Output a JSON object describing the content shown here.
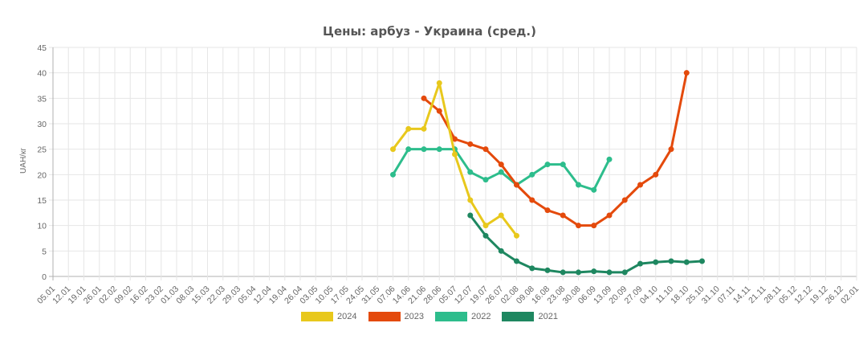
{
  "chart_data": {
    "type": "line",
    "title": "Цены: арбуз - Украина (сред.)",
    "xlabel": "",
    "ylabel": "UAH/кг",
    "ylim": [
      0,
      45
    ],
    "yticks": [
      0,
      5,
      10,
      15,
      20,
      25,
      30,
      35,
      40,
      45
    ],
    "grid": true,
    "legend_position": "bottom",
    "categories": [
      "05.01",
      "12.01",
      "19.01",
      "26.01",
      "02.02",
      "09.02",
      "16.02",
      "23.02",
      "01.03",
      "08.03",
      "15.03",
      "22.03",
      "29.03",
      "05.04",
      "12.04",
      "19.04",
      "26.04",
      "03.05",
      "10.05",
      "17.05",
      "24.05",
      "31.05",
      "07.06",
      "14.06",
      "21.06",
      "28.06",
      "05.07",
      "12.07",
      "19.07",
      "26.07",
      "02.08",
      "09.08",
      "16.08",
      "23.08",
      "30.08",
      "06.09",
      "13.09",
      "20.09",
      "27.09",
      "04.10",
      "11.10",
      "18.10",
      "25.10",
      "31.10",
      "07.11",
      "14.11",
      "21.11",
      "28.11",
      "05.12",
      "12.12",
      "19.12",
      "26.12",
      "02.01"
    ],
    "series": [
      {
        "name": "2024",
        "color": "#e8c81c",
        "points": [
          [
            "07.06",
            25
          ],
          [
            "14.06",
            29
          ],
          [
            "21.06",
            29
          ],
          [
            "28.06",
            38
          ],
          [
            "05.07",
            24
          ],
          [
            "12.07",
            15
          ],
          [
            "19.07",
            10
          ],
          [
            "26.07",
            12
          ],
          [
            "02.08",
            8
          ]
        ]
      },
      {
        "name": "2023",
        "color": "#e44a0c",
        "points": [
          [
            "21.06",
            35
          ],
          [
            "28.06",
            32.5
          ],
          [
            "05.07",
            27
          ],
          [
            "12.07",
            26
          ],
          [
            "19.07",
            25
          ],
          [
            "26.07",
            22
          ],
          [
            "02.08",
            18
          ],
          [
            "09.08",
            15
          ],
          [
            "16.08",
            13
          ],
          [
            "23.08",
            12
          ],
          [
            "30.08",
            10
          ],
          [
            "06.09",
            10
          ],
          [
            "13.09",
            12
          ],
          [
            "20.09",
            15
          ],
          [
            "27.09",
            18
          ],
          [
            "04.10",
            20
          ],
          [
            "11.10",
            25
          ],
          [
            "18.10",
            40
          ]
        ]
      },
      {
        "name": "2022",
        "color": "#2dbd8c",
        "points": [
          [
            "07.06",
            20
          ],
          [
            "14.06",
            25
          ],
          [
            "21.06",
            25
          ],
          [
            "28.06",
            25
          ],
          [
            "05.07",
            25
          ],
          [
            "12.07",
            20.5
          ],
          [
            "19.07",
            19
          ],
          [
            "26.07",
            20.5
          ],
          [
            "02.08",
            18
          ],
          [
            "09.08",
            20
          ],
          [
            "16.08",
            22
          ],
          [
            "23.08",
            22
          ],
          [
            "30.08",
            18
          ],
          [
            "06.09",
            17
          ],
          [
            "13.09",
            23
          ]
        ]
      },
      {
        "name": "2021",
        "color": "#1e8760",
        "points": [
          [
            "12.07",
            12
          ],
          [
            "19.07",
            8
          ],
          [
            "26.07",
            5
          ],
          [
            "02.08",
            3
          ],
          [
            "09.08",
            1.6
          ],
          [
            "16.08",
            1.2
          ],
          [
            "23.08",
            0.8
          ],
          [
            "30.08",
            0.8
          ],
          [
            "06.09",
            1
          ],
          [
            "13.09",
            0.8
          ],
          [
            "20.09",
            0.8
          ],
          [
            "27.09",
            2.5
          ],
          [
            "04.10",
            2.8
          ],
          [
            "11.10",
            3
          ],
          [
            "18.10",
            2.8
          ],
          [
            "25.10",
            3
          ]
        ]
      }
    ]
  },
  "legend": [
    {
      "label": "2024",
      "color": "#e8c81c"
    },
    {
      "label": "2023",
      "color": "#e44a0c"
    },
    {
      "label": "2022",
      "color": "#2dbd8c"
    },
    {
      "label": "2021",
      "color": "#1e8760"
    }
  ]
}
